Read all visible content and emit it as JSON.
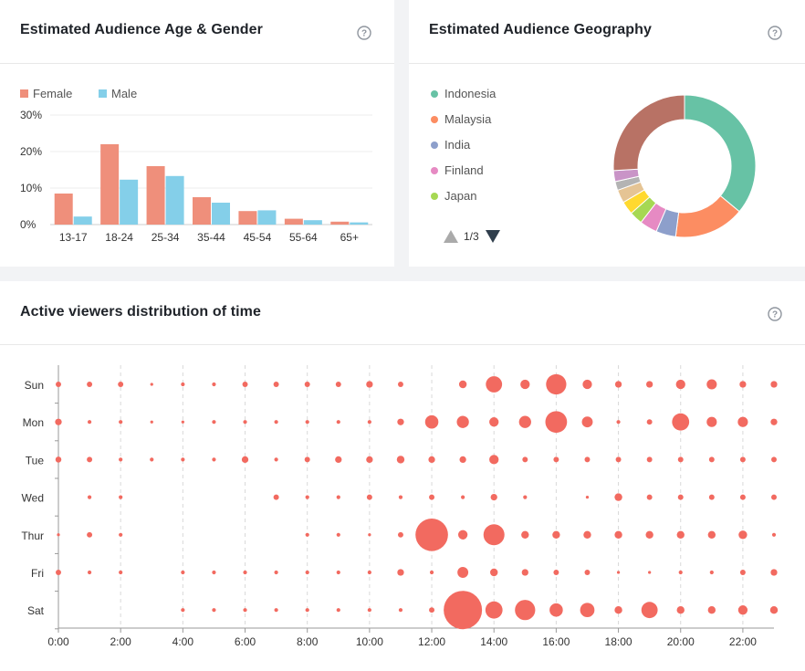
{
  "age_gender": {
    "title": "Estimated Audience Age & Gender",
    "legend": [
      {
        "label": "Female",
        "color": "#ef8f7b"
      },
      {
        "label": "Male",
        "color": "#84cfe9"
      }
    ]
  },
  "geography": {
    "title": "Estimated Audience Geography",
    "legend": [
      {
        "label": "Indonesia",
        "color": "#67c2a5"
      },
      {
        "label": "Malaysia",
        "color": "#fc8d62"
      },
      {
        "label": "India",
        "color": "#8d9fcb"
      },
      {
        "label": "Finland",
        "color": "#e68ac3"
      },
      {
        "label": "Japan",
        "color": "#a6d853"
      }
    ],
    "pager": "1/3"
  },
  "viewers": {
    "title": "Active viewers distribution of time"
  },
  "chart_data": [
    {
      "type": "bar",
      "categories": [
        "13-17",
        "18-24",
        "25-34",
        "35-44",
        "45-54",
        "55-64",
        "65+"
      ],
      "series": [
        {
          "name": "Female",
          "values": [
            8.5,
            22,
            16,
            7.5,
            3.7,
            1.6,
            0.8
          ]
        },
        {
          "name": "Male",
          "values": [
            2.2,
            12.3,
            13.3,
            6,
            3.9,
            1.2,
            0.6
          ]
        }
      ],
      "yticks": [
        "0%",
        "10%",
        "20%",
        "30%"
      ],
      "ylim": [
        0,
        30
      ],
      "legend_position": "top-left"
    },
    {
      "type": "pie",
      "labels": [
        "Indonesia",
        "Malaysia",
        "India",
        "Finland",
        "Japan"
      ],
      "values": [
        36,
        16,
        4.5,
        4,
        3
      ],
      "other_slices": [
        {
          "value": 3,
          "color": "#ffd92f"
        },
        {
          "value": 3,
          "color": "#e5c494"
        },
        {
          "value": 2,
          "color": "#b3b3b3"
        },
        {
          "value": 2.5,
          "color": "#c994c7"
        },
        {
          "value": 26,
          "color": "#b87265"
        }
      ],
      "donut": true
    },
    {
      "type": "scatter",
      "y_categories": [
        "Sun",
        "Mon",
        "Tue",
        "Wed",
        "Thur",
        "Fri",
        "Sat"
      ],
      "x_ticks": [
        "0:00",
        "2:00",
        "4:00",
        "6:00",
        "8:00",
        "10:00",
        "12:00",
        "14:00",
        "16:00",
        "18:00",
        "20:00",
        "22:00"
      ],
      "x_range": [
        0,
        23
      ],
      "color": "#f26a60",
      "values": [
        [
          1,
          1,
          1,
          0.3,
          0.5,
          0.5,
          1,
          1,
          1,
          1,
          1.5,
          1,
          0,
          2,
          9,
          3,
          14,
          3,
          1.5,
          1.5,
          3,
          3.5,
          1.5,
          1.5
        ],
        [
          1.5,
          0.5,
          0.5,
          0.3,
          0.3,
          0.5,
          0.5,
          0.5,
          0.5,
          0.5,
          0.5,
          1.5,
          6,
          5,
          3,
          5,
          16,
          4,
          0.5,
          1,
          10,
          3.5,
          3.5,
          1.5
        ],
        [
          1.2,
          1,
          0.5,
          0.5,
          0.5,
          0.5,
          1.5,
          0.5,
          1,
          1.5,
          1.5,
          2,
          1.5,
          1.5,
          3,
          1,
          1,
          1,
          1,
          1,
          1,
          1,
          1,
          1
        ],
        [
          0,
          0.5,
          0.5,
          0,
          0,
          0,
          0,
          1,
          0.5,
          0.5,
          1,
          0.5,
          1,
          0.5,
          1.5,
          0.5,
          0,
          0.3,
          2,
          1,
          1,
          1,
          1,
          1
        ],
        [
          0.3,
          1,
          0.5,
          0,
          0,
          0,
          0,
          0,
          0.5,
          0.5,
          0.3,
          1,
          36,
          3,
          15,
          2,
          2,
          2,
          2,
          2,
          2,
          2,
          2.5,
          0.5
        ],
        [
          1,
          0.5,
          0.5,
          0,
          0.5,
          0.5,
          0.5,
          0.5,
          0.5,
          0.5,
          0.5,
          1.5,
          0.5,
          4,
          2,
          1.5,
          1,
          1,
          0.3,
          0.3,
          0.5,
          0.5,
          1,
          1.5
        ],
        [
          0,
          0,
          0,
          0,
          0.5,
          0.5,
          0.5,
          0.5,
          0.5,
          0.5,
          0.5,
          0.5,
          1,
          50,
          10,
          14,
          6,
          7,
          2,
          9,
          2,
          2,
          3,
          2
        ]
      ]
    }
  ]
}
